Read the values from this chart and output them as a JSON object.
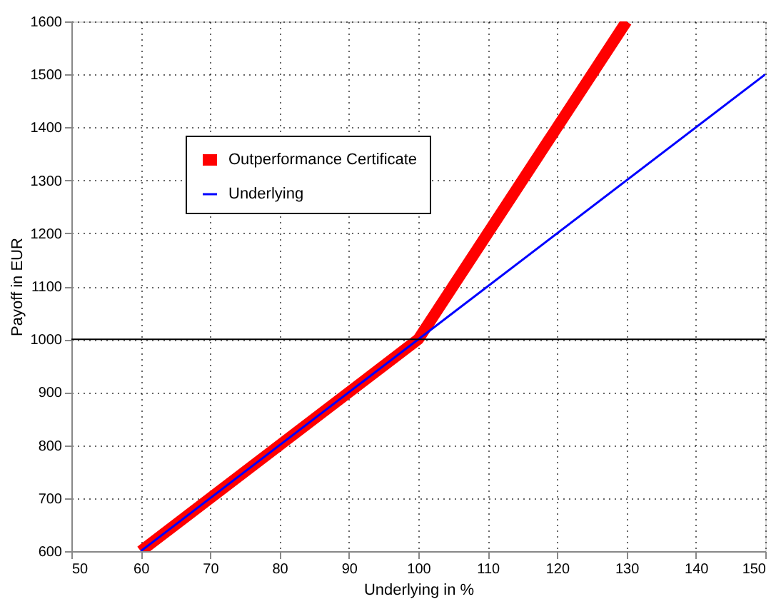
{
  "chart_data": {
    "type": "line",
    "xlabel": "Underlying in %",
    "ylabel": "Payoff in EUR",
    "xlim": [
      50,
      150
    ],
    "ylim": [
      600,
      1600
    ],
    "xticks": [
      50,
      60,
      70,
      80,
      90,
      100,
      110,
      120,
      130,
      140,
      150
    ],
    "yticks": [
      600,
      700,
      800,
      900,
      1000,
      1100,
      1200,
      1300,
      1400,
      1500,
      1600
    ],
    "grid": true,
    "legend": "top left",
    "line_style": "solid",
    "series": [
      {
        "name": "Outperformance Certificate",
        "color": "#ff0000",
        "x": [
          60,
          100,
          130
        ],
        "values": [
          600,
          1000,
          1600
        ]
      },
      {
        "name": "Underlying",
        "color": "#0000ff",
        "x": [
          60,
          100,
          150
        ],
        "values": [
          600,
          1000,
          1500
        ]
      }
    ],
    "ref_lines": [
      {
        "axis": "y",
        "value": 1000,
        "color": "#000000"
      }
    ]
  }
}
